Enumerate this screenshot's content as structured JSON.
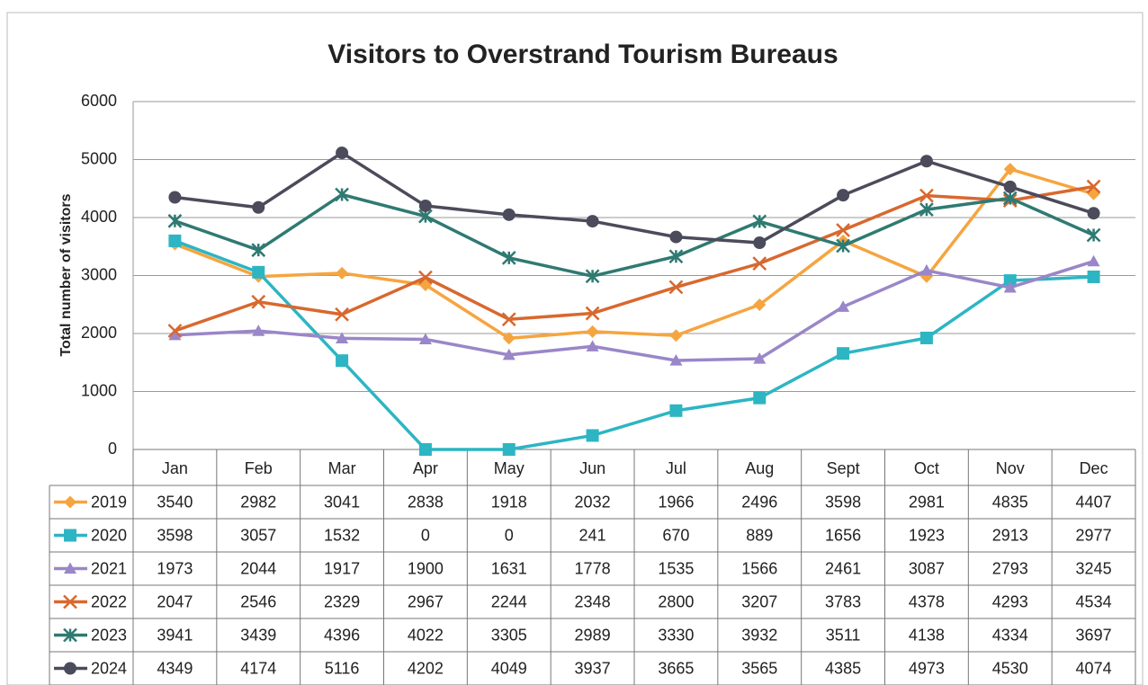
{
  "chart_data": {
    "type": "line",
    "title": "Visitors to Overstrand Tourism Bureaus",
    "y_label": "Total number of visitors",
    "categories": [
      "Jan",
      "Feb",
      "Mar",
      "Apr",
      "May",
      "Jun",
      "Jul",
      "Aug",
      "Sept",
      "Oct",
      "Nov",
      "Dec"
    ],
    "ylim": [
      0,
      6000
    ],
    "yticks": [
      0,
      1000,
      2000,
      3000,
      4000,
      5000,
      6000
    ],
    "grid": true,
    "data_table": true,
    "series": [
      {
        "name": "2019",
        "color": "#f5a540",
        "marker": "diamond",
        "values": [
          3540,
          2982,
          3041,
          2838,
          1918,
          2032,
          1966,
          2496,
          3598,
          2981,
          4835,
          4407
        ]
      },
      {
        "name": "2020",
        "color": "#2db5c3",
        "marker": "square",
        "values": [
          3598,
          3057,
          1532,
          0,
          0,
          241,
          670,
          889,
          1656,
          1923,
          2913,
          2977
        ]
      },
      {
        "name": "2021",
        "color": "#9a86c8",
        "marker": "triangle",
        "values": [
          1973,
          2044,
          1917,
          1900,
          1631,
          1778,
          1535,
          1566,
          2461,
          3087,
          2793,
          3245
        ]
      },
      {
        "name": "2022",
        "color": "#d8682e",
        "marker": "x",
        "values": [
          2047,
          2546,
          2329,
          2967,
          2244,
          2348,
          2800,
          3207,
          3783,
          4378,
          4293,
          4534
        ]
      },
      {
        "name": "2023",
        "color": "#2f7a72",
        "marker": "star",
        "values": [
          3941,
          3439,
          4396,
          4022,
          3305,
          2989,
          3330,
          3932,
          3511,
          4138,
          4334,
          3697
        ]
      },
      {
        "name": "2024",
        "color": "#4b4b5b",
        "marker": "circle",
        "values": [
          4349,
          4174,
          5116,
          4202,
          4049,
          3937,
          3665,
          3565,
          4385,
          4973,
          4530,
          4074
        ]
      }
    ]
  }
}
